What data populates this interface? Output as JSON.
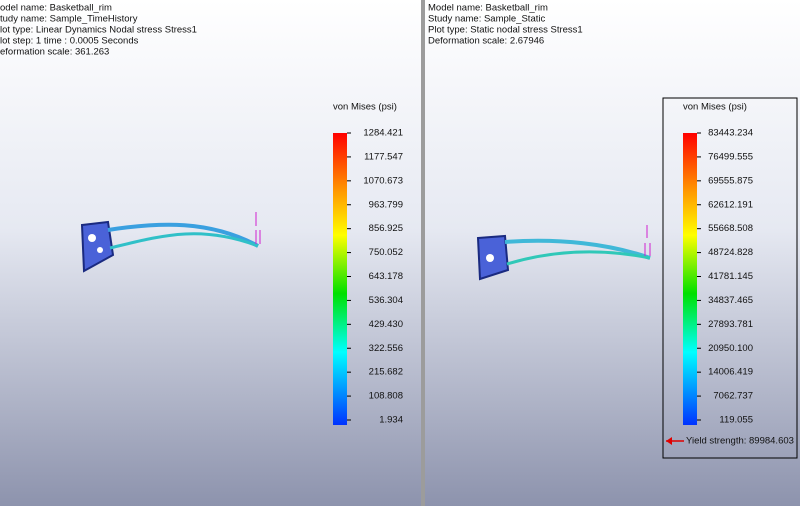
{
  "panels": [
    {
      "info": [
        "odel name: Basketball_rim",
        "tudy name: Sample_TimeHistory",
        "lot type: Linear Dynamics Nodal stress Stress1",
        "lot step: 1   time : 0.0005 Seconds",
        "eformation scale: 361.263"
      ],
      "legend": {
        "title": "von Mises (psi)",
        "labels": [
          "1284.421",
          "1177.547",
          "1070.673",
          "963.799",
          "856.925",
          "750.052",
          "643.178",
          "536.304",
          "429.430",
          "322.556",
          "215.682",
          "108.808",
          "1.934"
        ]
      }
    },
    {
      "info": [
        "Model name: Basketball_rim",
        "Study name: Sample_Static",
        "Plot type: Static nodal stress Stress1",
        "Deformation scale: 2.67946"
      ],
      "legend": {
        "title": "von Mises (psi)",
        "labels": [
          "83443.234",
          "76499.555",
          "69555.875",
          "62612.191",
          "55668.508",
          "48724.828",
          "41781.145",
          "34837.465",
          "27893.781",
          "20950.100",
          "14006.419",
          "7062.737",
          "119.055"
        ],
        "yield_label": "Yield strength: 89984.603"
      }
    }
  ]
}
